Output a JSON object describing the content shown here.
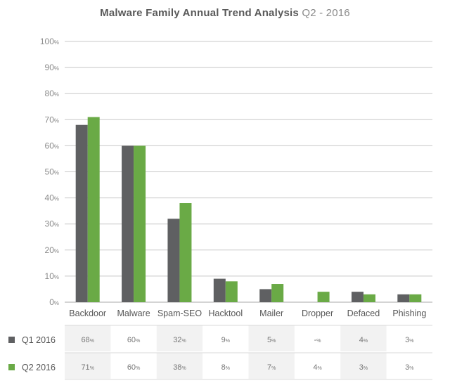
{
  "chart_data": {
    "type": "bar",
    "title": "Malware Family Annual Trend Analysis",
    "subtitle": "Q2 - 2016",
    "categories": [
      "Backdoor",
      "Malware",
      "Spam-SEO",
      "Hacktool",
      "Mailer",
      "Dropper",
      "Defaced",
      "Phishing"
    ],
    "series": [
      {
        "name": "Q1 2016",
        "color": "#5f6062",
        "values": [
          68,
          60,
          32,
          9,
          5,
          null,
          4,
          3
        ],
        "labels": [
          "68",
          "60",
          "32",
          "9",
          "5",
          "-",
          "4",
          "3"
        ]
      },
      {
        "name": "Q2 2016",
        "color": "#6aaa46",
        "values": [
          71,
          60,
          38,
          8,
          7,
          4,
          3,
          3
        ],
        "labels": [
          "71",
          "60",
          "38",
          "8",
          "7",
          "4",
          "3",
          "3"
        ]
      }
    ],
    "ylim": [
      0,
      100
    ],
    "yticks": [
      0,
      10,
      20,
      30,
      40,
      50,
      60,
      70,
      80,
      90,
      100
    ],
    "ytick_suffix": "%",
    "grid": true,
    "legend": "bottom-left table"
  }
}
